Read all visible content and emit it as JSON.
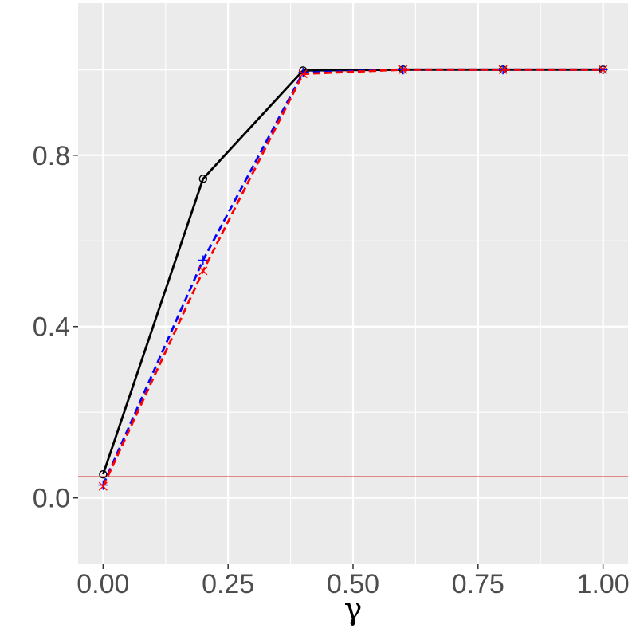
{
  "chart_data": {
    "type": "line",
    "title": "",
    "xlabel": "γ",
    "ylabel": "",
    "xlim": [
      -0.05,
      1.05
    ],
    "ylim": [
      -0.155,
      1.155
    ],
    "x_ticks": [
      0.0,
      0.25,
      0.5,
      0.75,
      1.0
    ],
    "x_tick_labels": [
      "0.00",
      "0.25",
      "0.50",
      "0.75",
      "1.00"
    ],
    "y_ticks": [
      0.0,
      0.4,
      0.8
    ],
    "y_tick_labels": [
      "0.0",
      "0.4",
      "0.8"
    ],
    "grid": true,
    "reference_line": {
      "y": 0.05,
      "color": "#e06666"
    },
    "x": [
      0.0,
      0.2,
      0.4,
      0.6,
      0.8,
      1.0
    ],
    "series": [
      {
        "values": [
          0.055,
          0.745,
          0.998,
          1.0,
          1.0,
          1.0
        ],
        "color": "#000000",
        "dash": "solid",
        "marker": "circle"
      },
      {
        "values": [
          0.03,
          0.555,
          0.993,
          1.0,
          1.0,
          1.0
        ],
        "color": "#0000ff",
        "dash": "dashed",
        "marker": "plus"
      },
      {
        "values": [
          0.027,
          0.53,
          0.99,
          1.0,
          1.0,
          1.0
        ],
        "color": "#ff0000",
        "dash": "dashed",
        "marker": "cross"
      }
    ]
  }
}
